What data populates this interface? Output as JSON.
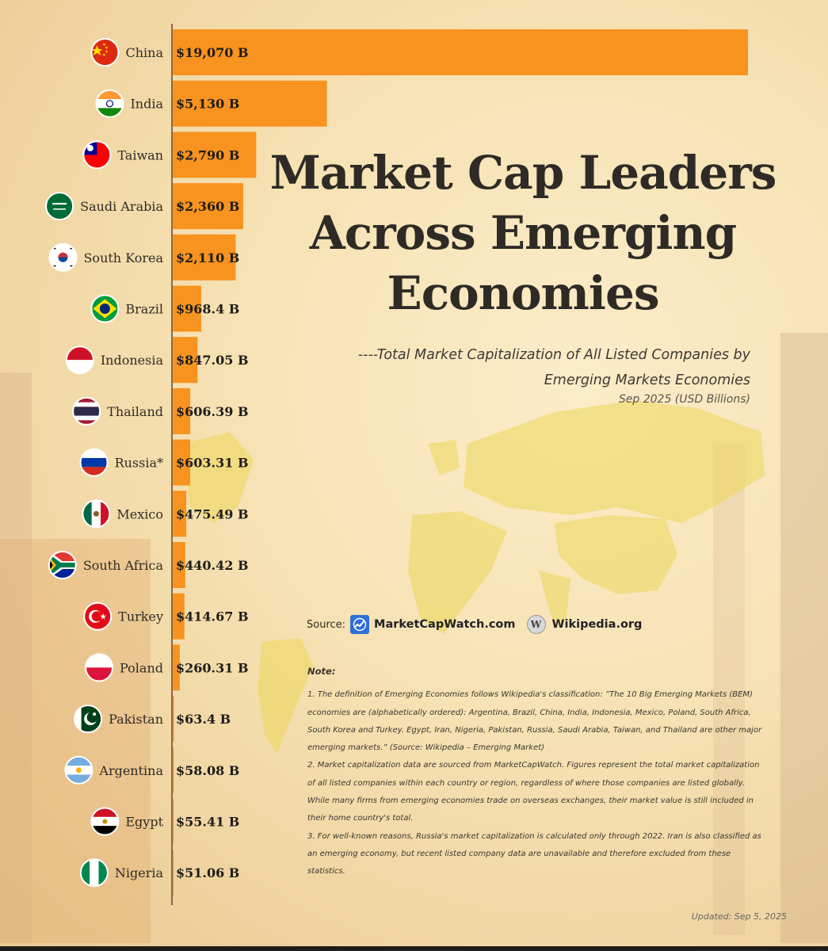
{
  "title": "Market Cap Leaders Across Emerging Economies",
  "subtitle": "----Total Market Capitalization of All Listed Companies by Emerging Markets Economies",
  "period": "Sep 2025 (USD Billions)",
  "source": {
    "label": "Source:",
    "items": [
      "MarketCapWatch.com",
      "Wikipedia.org"
    ]
  },
  "notes": {
    "title": "Note:",
    "items": [
      "1. The definition of Emerging Economies follows Wikipedia's classification: “The 10 Big Emerging Markets (BEM) economies are (alphabetically ordered): Argentina, Brazil, China, India, Indonesia, Mexico, Poland, South Africa, South Korea and Turkey. Egypt, Iran, Nigeria, Pakistan, Russia, Saudi Arabia, Taiwan, and Thailand are other major emerging markets.”   (Source: Wikipedia – Emerging Market)",
      "2. Market capitalization data are sourced from MarketCapWatch. Figures represent the total market capitalization of all listed companies within each country or region, regardless of where those companies are listed globally. While many firms from emerging economies trade on overseas exchanges, their market value is still included in their home country's total.",
      "3. For well-known reasons, Russia's market capitalization is calculated only through 2022. Iran is also classified as an emerging economy, but recent listed company data are unavailable and therefore excluded from these statistics."
    ]
  },
  "updated": "Updated: Sep 5, 2025",
  "colors": {
    "bar": "#f7931e",
    "axis": "#8a6a4a",
    "map": "#ecd75a"
  },
  "chart_data": {
    "type": "bar",
    "orientation": "horizontal",
    "unit": "USD Billions",
    "categories": [
      "China",
      "India",
      "Taiwan",
      "Saudi Arabia",
      "South Korea",
      "Brazil",
      "Indonesia",
      "Thailand",
      "Russia*",
      "Mexico",
      "South Africa",
      "Turkey",
      "Poland",
      "Pakistan",
      "Argentina",
      "Egypt",
      "Nigeria"
    ],
    "values": [
      19070,
      5130,
      2790,
      2360,
      2110,
      968.4,
      847.05,
      606.39,
      603.31,
      475.49,
      440.42,
      414.67,
      260.31,
      63.4,
      58.08,
      55.41,
      51.06
    ],
    "value_labels": [
      "$19,070 B",
      "$5,130 B",
      "$2,790 B",
      "$2,360 B",
      "$2,110 B",
      "$968.4 B",
      "$847.05 B",
      "$606.39 B",
      "$603.31 B",
      "$475.49 B",
      "$440.42 B",
      "$414.67 B",
      "$260.31 B",
      "$63.4 B",
      "$58.08 B",
      "$55.41 B",
      "$51.06 B"
    ],
    "flags": [
      "china-flag-icon",
      "india-flag-icon",
      "taiwan-flag-icon",
      "saudi-arabia-flag-icon",
      "south-korea-flag-icon",
      "brazil-flag-icon",
      "indonesia-flag-icon",
      "thailand-flag-icon",
      "russia-flag-icon",
      "mexico-flag-icon",
      "south-africa-flag-icon",
      "turkey-flag-icon",
      "poland-flag-icon",
      "pakistan-flag-icon",
      "argentina-flag-icon",
      "egypt-flag-icon",
      "nigeria-flag-icon"
    ]
  }
}
